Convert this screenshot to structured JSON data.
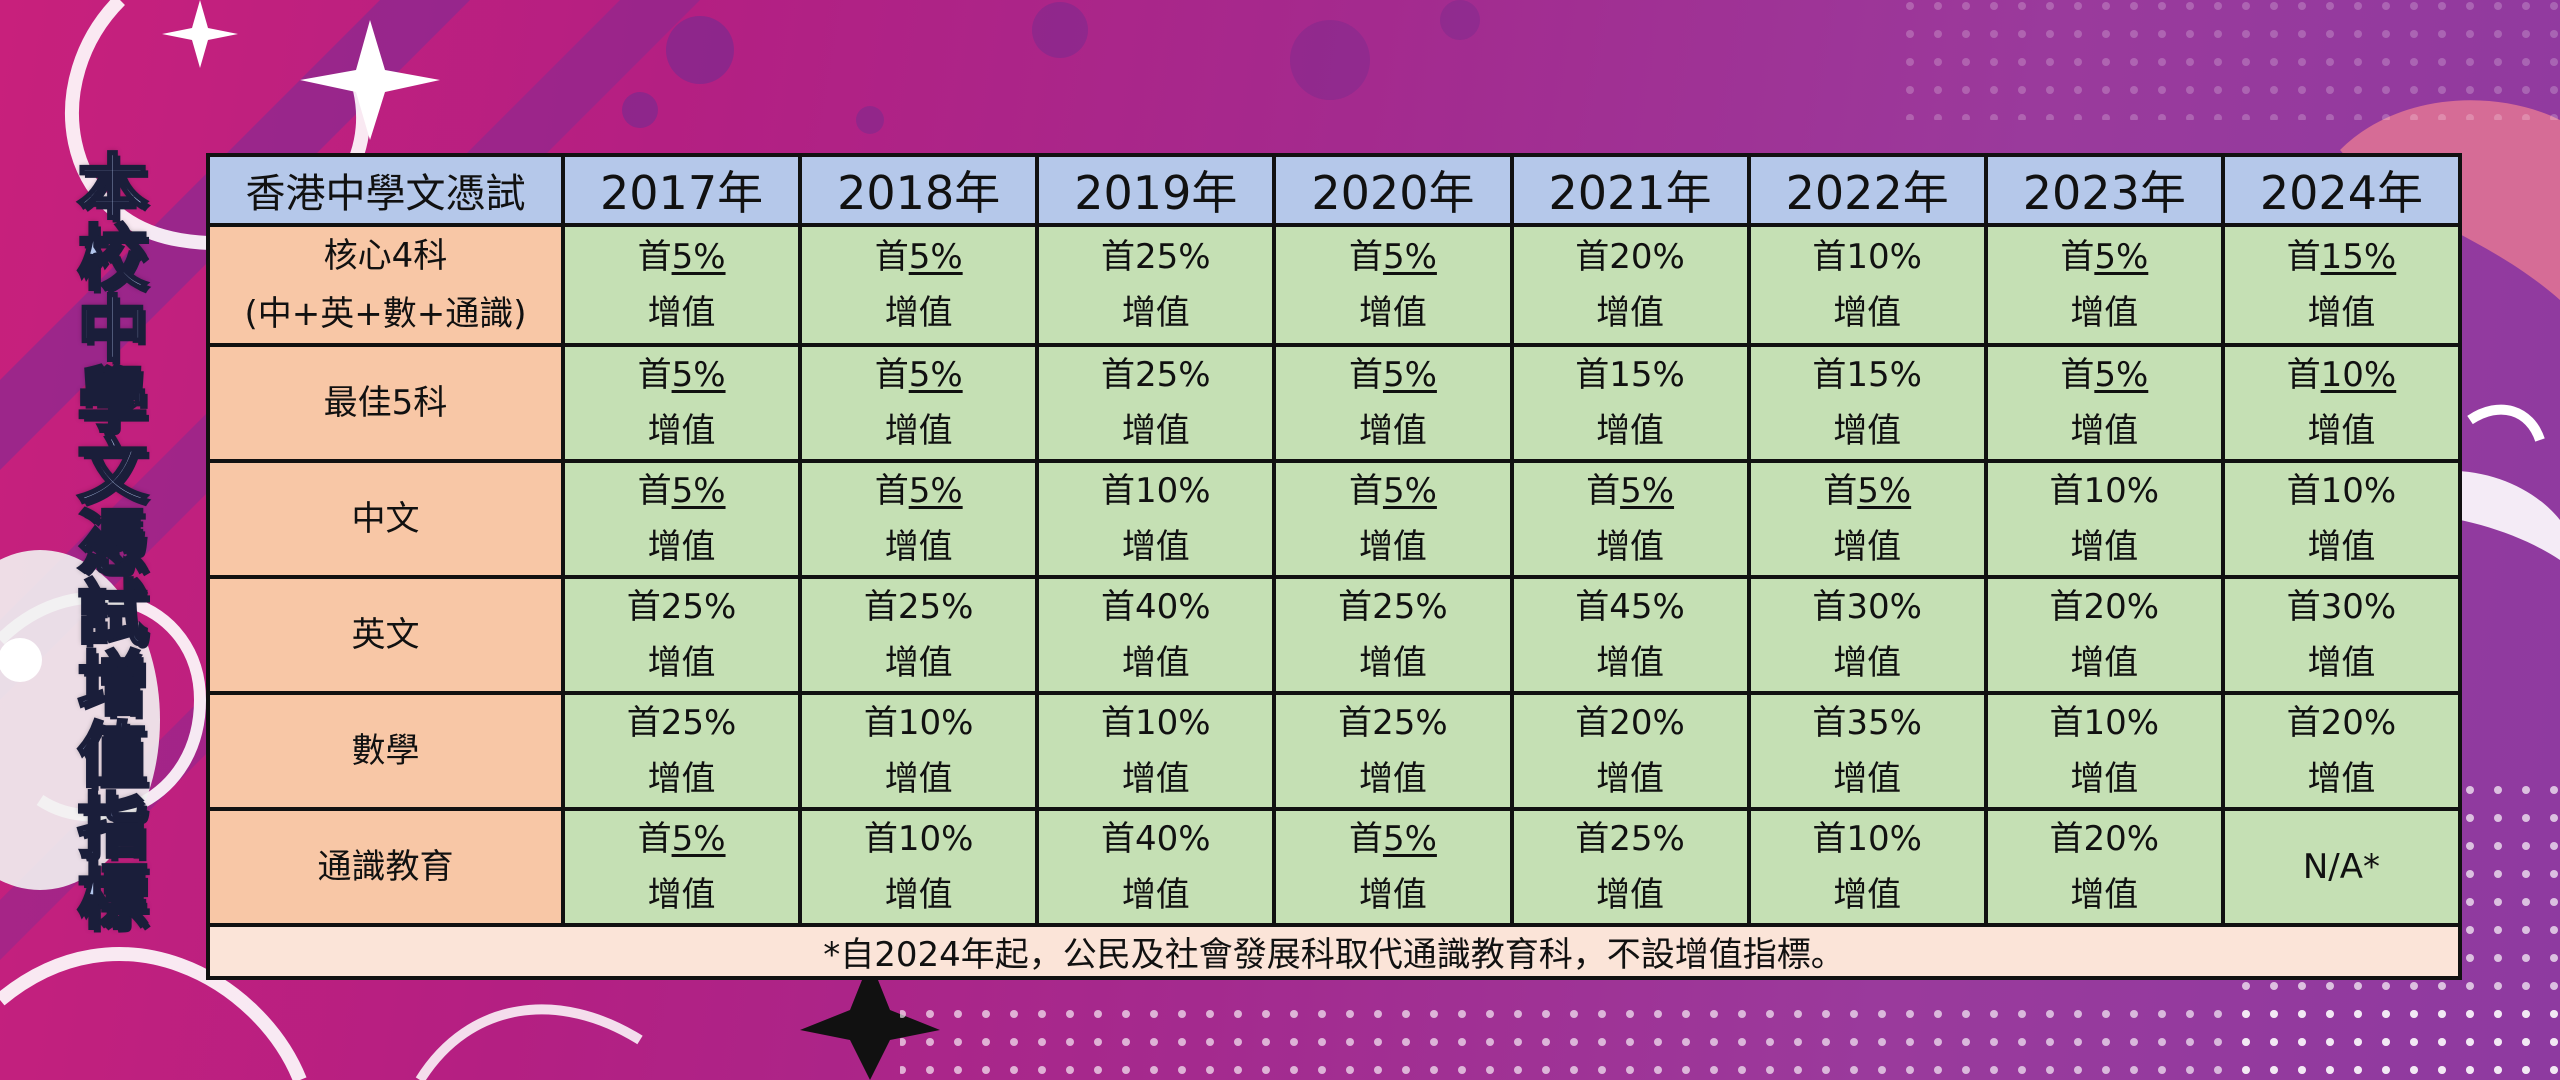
{
  "side_title": "本校中學文憑試增值指標",
  "table": {
    "corner": "香港中學文憑試",
    "years": [
      "2017年",
      "2018年",
      "2019年",
      "2020年",
      "2021年",
      "2022年",
      "2023年",
      "2024年"
    ],
    "rows": [
      {
        "label_lines": [
          "核心4科",
          "(中+英+數+通識)"
        ],
        "cells": [
          {
            "prefix": "首",
            "pct": "5%",
            "underline": true,
            "sub": "增值"
          },
          {
            "prefix": "首",
            "pct": "5%",
            "underline": true,
            "sub": "增值"
          },
          {
            "prefix": "首",
            "pct": "25%",
            "underline": false,
            "sub": "增值"
          },
          {
            "prefix": "首",
            "pct": "5%",
            "underline": true,
            "sub": "增值"
          },
          {
            "prefix": "首",
            "pct": "20%",
            "underline": false,
            "sub": "增值"
          },
          {
            "prefix": "首",
            "pct": "10%",
            "underline": false,
            "sub": "增值"
          },
          {
            "prefix": "首",
            "pct": "5%",
            "underline": true,
            "sub": "增值"
          },
          {
            "prefix": "首",
            "pct": "15%",
            "underline": true,
            "sub": "增值"
          }
        ]
      },
      {
        "label_lines": [
          "最佳5科"
        ],
        "cells": [
          {
            "prefix": "首",
            "pct": "5%",
            "underline": true,
            "sub": "增值"
          },
          {
            "prefix": "首",
            "pct": "5%",
            "underline": true,
            "sub": "增值"
          },
          {
            "prefix": "首",
            "pct": "25%",
            "underline": false,
            "sub": "增值"
          },
          {
            "prefix": "首",
            "pct": "5%",
            "underline": true,
            "sub": "增值"
          },
          {
            "prefix": "首",
            "pct": "15%",
            "underline": false,
            "sub": "增值"
          },
          {
            "prefix": "首",
            "pct": "15%",
            "underline": false,
            "sub": "增值"
          },
          {
            "prefix": "首",
            "pct": "5%",
            "underline": true,
            "sub": "增值"
          },
          {
            "prefix": "首",
            "pct": "10%",
            "underline": true,
            "sub": "增值"
          }
        ]
      },
      {
        "label_lines": [
          "中文"
        ],
        "cells": [
          {
            "prefix": "首",
            "pct": "5%",
            "underline": true,
            "sub": "增值"
          },
          {
            "prefix": "首",
            "pct": "5%",
            "underline": true,
            "sub": "增值"
          },
          {
            "prefix": "首",
            "pct": "10%",
            "underline": false,
            "sub": "增值"
          },
          {
            "prefix": "首",
            "pct": "5%",
            "underline": true,
            "sub": "增值"
          },
          {
            "prefix": "首",
            "pct": "5%",
            "underline": true,
            "sub": "增值"
          },
          {
            "prefix": "首",
            "pct": "5%",
            "underline": true,
            "sub": "增值"
          },
          {
            "prefix": "首",
            "pct": "10%",
            "underline": false,
            "sub": "增值"
          },
          {
            "prefix": "首",
            "pct": "10%",
            "underline": false,
            "sub": "增值"
          }
        ]
      },
      {
        "label_lines": [
          "英文"
        ],
        "cells": [
          {
            "prefix": "首",
            "pct": "25%",
            "underline": false,
            "sub": "增值"
          },
          {
            "prefix": "首",
            "pct": "25%",
            "underline": false,
            "sub": "增值"
          },
          {
            "prefix": "首",
            "pct": "40%",
            "underline": false,
            "sub": "增值"
          },
          {
            "prefix": "首",
            "pct": "25%",
            "underline": false,
            "sub": "增值"
          },
          {
            "prefix": "首",
            "pct": "45%",
            "underline": false,
            "sub": "增值"
          },
          {
            "prefix": "首",
            "pct": "30%",
            "underline": false,
            "sub": "增值"
          },
          {
            "prefix": "首",
            "pct": "20%",
            "underline": false,
            "sub": "增值"
          },
          {
            "prefix": "首",
            "pct": "30%",
            "underline": false,
            "sub": "增值"
          }
        ]
      },
      {
        "label_lines": [
          "數學"
        ],
        "cells": [
          {
            "prefix": "首",
            "pct": "25%",
            "underline": false,
            "sub": "增值"
          },
          {
            "prefix": "首",
            "pct": "10%",
            "underline": false,
            "sub": "增值"
          },
          {
            "prefix": "首",
            "pct": "10%",
            "underline": false,
            "sub": "增值"
          },
          {
            "prefix": "首",
            "pct": "25%",
            "underline": false,
            "sub": "增值"
          },
          {
            "prefix": "首",
            "pct": "20%",
            "underline": false,
            "sub": "增值"
          },
          {
            "prefix": "首",
            "pct": "35%",
            "underline": false,
            "sub": "增值"
          },
          {
            "prefix": "首",
            "pct": "10%",
            "underline": false,
            "sub": "增值"
          },
          {
            "prefix": "首",
            "pct": "20%",
            "underline": false,
            "sub": "增值"
          }
        ]
      },
      {
        "label_lines": [
          "通識教育"
        ],
        "cells": [
          {
            "prefix": "首",
            "pct": "5%",
            "underline": true,
            "sub": "增值"
          },
          {
            "prefix": "首",
            "pct": "10%",
            "underline": false,
            "sub": "增值"
          },
          {
            "prefix": "首",
            "pct": "40%",
            "underline": false,
            "sub": "增值"
          },
          {
            "prefix": "首",
            "pct": "5%",
            "underline": true,
            "sub": "增值"
          },
          {
            "prefix": "首",
            "pct": "25%",
            "underline": false,
            "sub": "增值"
          },
          {
            "prefix": "首",
            "pct": "10%",
            "underline": false,
            "sub": "增值"
          },
          {
            "prefix": "首",
            "pct": "20%",
            "underline": false,
            "sub": "增值"
          },
          {
            "prefix": "",
            "pct": "N/A*",
            "underline": false,
            "sub": ""
          }
        ]
      }
    ],
    "footnote": "*自2024年起，公民及社會發展科取代通識教育科，不設增值指標。"
  },
  "colors": {
    "header_bg": "#b5c8ea",
    "rowhead_bg": "#f8c7a6",
    "cell_bg": "#c5e0b4",
    "note_bg": "#fbe4d8",
    "title_fill": "#b3c6ec"
  }
}
